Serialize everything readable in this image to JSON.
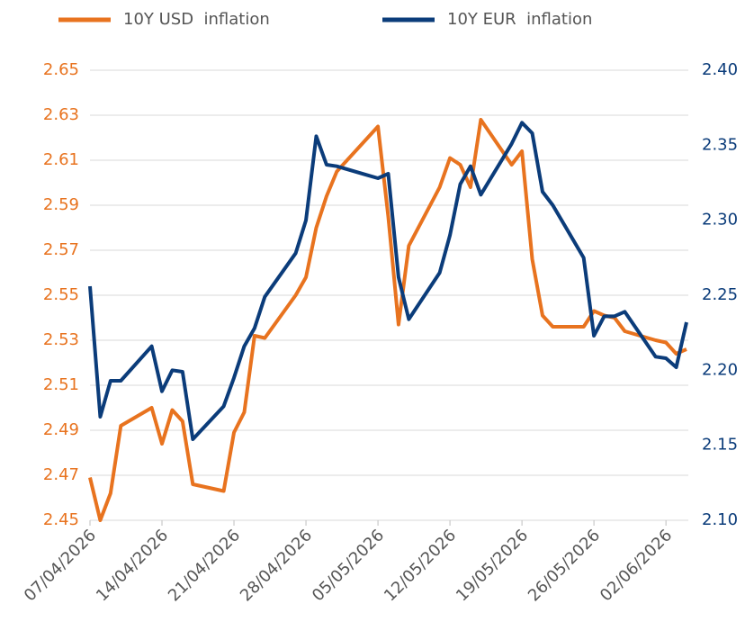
{
  "chart_data": {
    "type": "line",
    "x": [
      "07/04/2026",
      "08/04/2026",
      "09/04/2026",
      "10/04/2026",
      "13/04/2026",
      "14/04/2026",
      "15/04/2026",
      "16/04/2026",
      "17/04/2026",
      "20/04/2026",
      "21/04/2026",
      "22/04/2026",
      "23/04/2026",
      "24/04/2026",
      "27/04/2026",
      "28/04/2026",
      "29/04/2026",
      "30/04/2026",
      "01/05/2026",
      "04/05/2026",
      "05/05/2026",
      "06/05/2026",
      "07/05/2026",
      "08/05/2026",
      "11/05/2026",
      "12/05/2026",
      "13/05/2026",
      "14/05/2026",
      "15/05/2026",
      "18/05/2026",
      "19/05/2026",
      "20/05/2026",
      "21/05/2026",
      "22/05/2026",
      "25/05/2026",
      "26/05/2026",
      "27/05/2026",
      "28/05/2026",
      "29/05/2026",
      "01/06/2026",
      "02/06/2026",
      "03/06/2026",
      "04/06/2026"
    ],
    "series": [
      {
        "name": "10Y USD  inflation",
        "color": "#e8731f",
        "values": [
          2.469,
          2.45,
          2.462,
          2.492,
          2.5,
          2.484,
          2.499,
          2.494,
          2.466,
          2.463,
          2.489,
          2.498,
          2.532,
          2.531,
          2.55,
          2.558,
          2.58,
          2.594,
          2.605,
          2.62,
          2.625,
          2.585,
          2.537,
          2.572,
          2.598,
          2.611,
          2.608,
          2.598,
          2.628,
          2.608,
          2.614,
          2.566,
          2.541,
          2.536,
          2.536,
          2.543,
          2.541,
          2.54,
          2.534,
          2.53,
          2.529,
          2.524,
          2.526
        ]
      },
      {
        "name": "10Y EUR  inflation",
        "color": "#0b3c7a",
        "axis": "y2",
        "values": [
          2.256,
          2.169,
          2.193,
          2.193,
          2.216,
          2.186,
          2.2,
          2.199,
          2.154,
          2.176,
          2.195,
          2.216,
          2.228,
          2.249,
          2.278,
          2.3,
          2.356,
          2.337,
          2.336,
          2.33,
          2.328,
          2.331,
          2.262,
          2.234,
          2.265,
          2.29,
          2.324,
          2.336,
          2.317,
          2.351,
          2.365,
          2.358,
          2.319,
          2.31,
          2.275,
          2.223,
          2.236,
          2.236,
          2.239,
          2.209,
          2.208,
          2.202,
          2.232
        ]
      }
    ],
    "xlim": [
      "07/04/2026",
      "04/06/2026"
    ],
    "xticks": [
      "07/04/2026",
      "14/04/2026",
      "21/04/2026",
      "28/04/2026",
      "05/05/2026",
      "12/05/2026",
      "19/05/2026",
      "26/05/2026",
      "02/06/2026"
    ],
    "ylim": [
      2.45,
      2.65
    ],
    "yticks": [
      2.45,
      2.47,
      2.49,
      2.51,
      2.53,
      2.55,
      2.57,
      2.59,
      2.61,
      2.63,
      2.65
    ],
    "y2lim": [
      2.1,
      2.4
    ],
    "y2ticks": [
      {
        "value": 2.1,
        "label": "2.10"
      },
      2.15,
      {
        "value": 2.2,
        "label": "2.20"
      },
      2.25,
      {
        "value": 2.3,
        "label": "2.30"
      },
      2.35,
      {
        "value": 2.4,
        "label": "2.40"
      }
    ],
    "grid": true,
    "legend": "top"
  }
}
